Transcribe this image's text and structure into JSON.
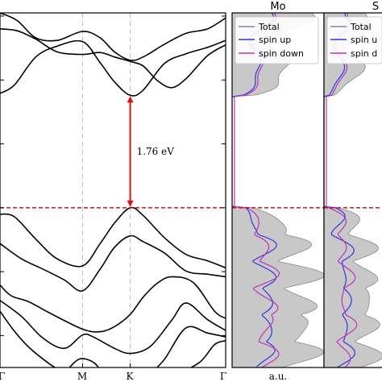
{
  "chart_data": [
    {
      "type": "line",
      "kpath_labels": [
        "Γ",
        "M",
        "K",
        "Γ"
      ],
      "kpath_positions": [
        0,
        0.577,
        0.91,
        1.577
      ],
      "ylim": [
        -2.5,
        3.05
      ],
      "fermi_level": 0.0,
      "gap_annotation": "1.76 eV",
      "gap": {
        "k": 0.91,
        "from": 0.0,
        "to": 1.76
      },
      "colors": {
        "bands": "#000000",
        "fermi": "#cc0000",
        "gap_arrow": "#dd1111",
        "kline": "#bbbbbb"
      },
      "bands": {
        "conduction": [
          [
            [
              0.0,
              1.79
            ],
            [
              0.1,
              1.92
            ],
            [
              0.25,
              2.36
            ],
            [
              0.4,
              2.53
            ],
            [
              0.577,
              2.6
            ],
            [
              0.7,
              2.27
            ],
            [
              0.8,
              1.97
            ],
            [
              0.91,
              1.76
            ],
            [
              1.0,
              1.84
            ],
            [
              1.15,
              2.26
            ],
            [
              1.3,
              2.41
            ],
            [
              1.45,
              2.51
            ],
            [
              1.577,
              2.62
            ]
          ],
          [
            [
              0.0,
              2.8
            ],
            [
              0.12,
              2.77
            ],
            [
              0.25,
              2.64
            ],
            [
              0.4,
              2.44
            ],
            [
              0.577,
              2.4
            ],
            [
              0.7,
              2.43
            ],
            [
              0.8,
              2.36
            ],
            [
              0.91,
              2.29
            ],
            [
              1.0,
              2.22
            ],
            [
              1.1,
              1.99
            ],
            [
              1.2,
              1.88
            ],
            [
              1.3,
              2.02
            ],
            [
              1.45,
              2.38
            ],
            [
              1.577,
              2.55
            ]
          ],
          [
            [
              0.0,
              3.05
            ],
            [
              0.12,
              2.93
            ],
            [
              0.25,
              2.66
            ],
            [
              0.4,
              2.62
            ],
            [
              0.577,
              2.76
            ],
            [
              0.7,
              2.66
            ],
            [
              0.8,
              2.44
            ],
            [
              0.91,
              2.31
            ],
            [
              1.0,
              2.36
            ],
            [
              1.15,
              2.56
            ],
            [
              1.3,
              2.73
            ],
            [
              1.45,
              2.8
            ],
            [
              1.577,
              2.97
            ]
          ]
        ],
        "valence": [
          [
            [
              0.0,
              -0.1
            ],
            [
              0.1,
              -0.14
            ],
            [
              0.25,
              -0.49
            ],
            [
              0.4,
              -0.8
            ],
            [
              0.577,
              -0.91
            ],
            [
              0.7,
              -0.56
            ],
            [
              0.8,
              -0.24
            ],
            [
              0.91,
              0.0
            ],
            [
              1.0,
              -0.12
            ],
            [
              1.15,
              -0.47
            ],
            [
              1.3,
              -0.73
            ],
            [
              1.45,
              -0.83
            ],
            [
              1.577,
              -0.94
            ]
          ],
          [
            [
              0.0,
              -0.56
            ],
            [
              0.15,
              -0.8
            ],
            [
              0.3,
              -0.96
            ],
            [
              0.45,
              -1.13
            ],
            [
              0.577,
              -1.3
            ],
            [
              0.7,
              -0.96
            ],
            [
              0.8,
              -0.62
            ],
            [
              0.91,
              -0.44
            ],
            [
              1.0,
              -0.53
            ],
            [
              1.15,
              -0.71
            ],
            [
              1.3,
              -0.99
            ],
            [
              1.45,
              -1.04
            ],
            [
              1.577,
              -1.08
            ]
          ],
          [
            [
              0.0,
              -1.21
            ],
            [
              0.08,
              -1.38
            ],
            [
              0.2,
              -1.47
            ],
            [
              0.35,
              -1.65
            ],
            [
              0.577,
              -1.9
            ],
            [
              0.7,
              -1.94
            ],
            [
              0.8,
              -1.86
            ],
            [
              0.91,
              -1.67
            ],
            [
              1.0,
              -1.4
            ],
            [
              1.1,
              -1.18
            ],
            [
              1.2,
              -1.08
            ],
            [
              1.35,
              -1.17
            ],
            [
              1.5,
              -1.62
            ],
            [
              1.577,
              -1.73
            ]
          ],
          [
            [
              0.0,
              -1.45
            ],
            [
              0.15,
              -1.7
            ],
            [
              0.3,
              -2.04
            ],
            [
              0.45,
              -2.2
            ],
            [
              0.577,
              -1.99
            ],
            [
              0.65,
              -2.02
            ],
            [
              0.8,
              -2.2
            ],
            [
              0.91,
              -2.28
            ],
            [
              1.05,
              -2.17
            ],
            [
              1.2,
              -1.76
            ],
            [
              1.3,
              -1.49
            ],
            [
              1.45,
              -1.75
            ],
            [
              1.577,
              -1.92
            ]
          ],
          [
            [
              0.0,
              -1.62
            ],
            [
              0.1,
              -1.93
            ],
            [
              0.2,
              -2.18
            ],
            [
              0.35,
              -2.45
            ],
            [
              0.46,
              -2.6
            ]
          ],
          [
            [
              0.45,
              -2.6
            ],
            [
              0.52,
              -2.42
            ],
            [
              0.577,
              -2.36
            ],
            [
              0.66,
              -2.43
            ],
            [
              0.72,
              -2.6
            ]
          ],
          [
            [
              1.05,
              -2.6
            ],
            [
              1.15,
              -2.37
            ],
            [
              1.3,
              -1.88
            ],
            [
              1.45,
              -1.96
            ],
            [
              1.577,
              -2.02
            ]
          ],
          [
            [
              1.25,
              -2.6
            ],
            [
              1.4,
              -2.41
            ],
            [
              1.5,
              -2.14
            ],
            [
              1.577,
              -2.08
            ]
          ]
        ]
      }
    },
    {
      "type": "area",
      "title": "Mo",
      "xlabel": "a.u.",
      "ylim": [
        -2.5,
        3.05
      ],
      "legend_position": "top-left",
      "series": [
        {
          "name": "Total",
          "color": "#888888",
          "fill": "#c8c8c8"
        },
        {
          "name": "spin up",
          "color": "#3333dd"
        },
        {
          "name": "spin down",
          "color": "#bb33bb"
        }
      ]
    },
    {
      "type": "area",
      "title": "S",
      "ylim": [
        -2.5,
        3.05
      ],
      "legend_position": "top-left",
      "series": [
        {
          "name": "Total",
          "color": "#888888",
          "fill": "#c8c8c8"
        },
        {
          "name": "spin u",
          "color": "#3333dd"
        },
        {
          "name": "spin d",
          "color": "#bb33bb"
        }
      ]
    }
  ]
}
